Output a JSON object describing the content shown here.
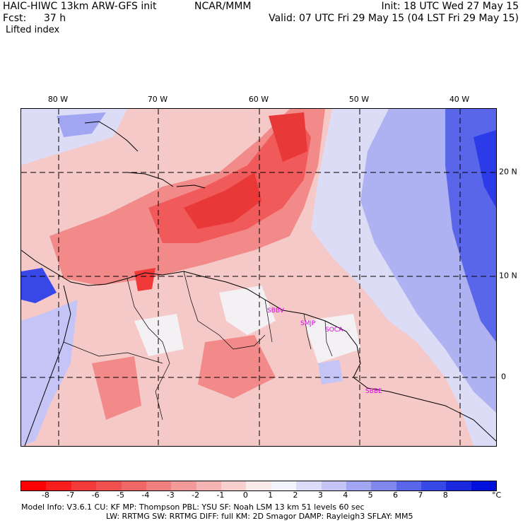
{
  "header": {
    "model": "HAIC-HIWC 13km ARW-GFS init",
    "org": "NCAR/MMM",
    "init": "Init: 18 UTC Wed 27 May 15",
    "fcst_label": "Fcst:",
    "fcst_value": "37 h",
    "valid": "Valid: 07 UTC Fri 29 May 15 (04 LST Fri 29 May 15)",
    "field": "Lifted index"
  },
  "map": {
    "longitude_labels": [
      "80 W",
      "70 W",
      "60 W",
      "50 W",
      "40 W"
    ],
    "latitude_labels": [
      "20 N",
      "10 N",
      "0"
    ],
    "stations": [
      "SBBV",
      "SMJP",
      "SOCA",
      "SBBE"
    ],
    "colors": {
      "unstable_strong": "#f03a3a",
      "unstable_mid": "#f28a8a",
      "unstable_weak": "#f6c9c9",
      "neutral": "#f4f1f4",
      "stable_weak": "#dcdcf6",
      "stable_mid": "#8d8df0",
      "stable_strong": "#2b3be8",
      "station": "#e000e0"
    }
  },
  "colorbar": {
    "labels": [
      "-8",
      "-7",
      "-6",
      "-5",
      "-4",
      "-3",
      "-2",
      "-1",
      "0",
      "1",
      "2",
      "3",
      "4",
      "5",
      "6",
      "7",
      "8"
    ],
    "unit": "°C",
    "colors": [
      "#ff0000",
      "#f81e1e",
      "#f23a3a",
      "#f05050",
      "#ef6868",
      "#f08080",
      "#f29a9a",
      "#f5b4b4",
      "#f8cfcf",
      "#faeaea",
      "#f4f4fc",
      "#dcdcf8",
      "#c4c4f6",
      "#a2a6f2",
      "#8088ee",
      "#5a66ea",
      "#3848e6",
      "#1a28e0",
      "#0010dc"
    ]
  },
  "footer": {
    "line1": "Model Info: V3.6.1    CU: KF      MP: Thompson     PBL: YSU       SF: Noah LSM      13 km    51 levels   60 sec",
    "line2": "LW: RRTMG   SW: RRTMG   DIFF: full    KM: 2D Smagor DAMP: Rayleigh3   SFLAY: MM5"
  }
}
